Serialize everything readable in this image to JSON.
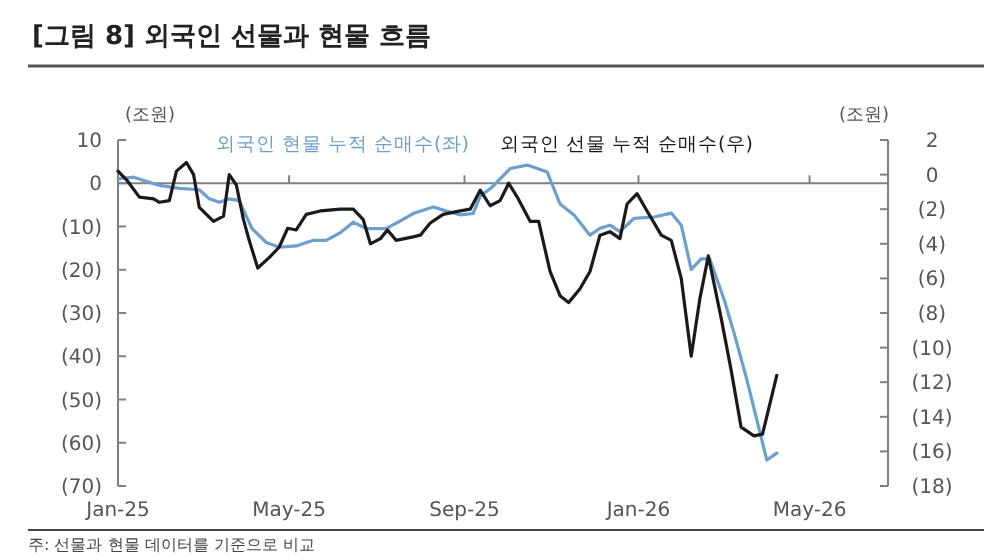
{
  "chart_data": {
    "type": "line",
    "title": "[그림 8] 외국인 선물과 현물 흐름",
    "ylabel": "(조원)",
    "y2label": "(조원)",
    "annotations": [
      "주: 선물과 현물 데이터를 기준으로 비교"
    ],
    "xlim": [
      "2025-01-01",
      "2026-06-25"
    ],
    "xticks": [
      {
        "value": "2025-01-01",
        "label": "Jan-25"
      },
      {
        "value": "2025-05-01",
        "label": "May-25"
      },
      {
        "value": "2025-09-01",
        "label": "Sep-25"
      },
      {
        "value": "2026-01-01",
        "label": "Jan-26"
      },
      {
        "value": "2026-05-01",
        "label": "May-26"
      }
    ],
    "ylim": [
      -70,
      10
    ],
    "yticks": [
      10,
      0,
      {
        "value": -10,
        "label": "(10)"
      },
      {
        "value": -20,
        "label": "(20)"
      },
      {
        "value": -30,
        "label": "(30)"
      },
      {
        "value": -40,
        "label": "(40)"
      },
      {
        "value": -50,
        "label": "(50)"
      },
      {
        "value": -60,
        "label": "(60)"
      },
      {
        "value": -70,
        "label": "(70)"
      }
    ],
    "y2lim": [
      -18,
      2
    ],
    "y2ticks": [
      2,
      0,
      {
        "value": -2,
        "label": "(2)"
      },
      {
        "value": -4,
        "label": "(4)"
      },
      {
        "value": -6,
        "label": "(6)"
      },
      {
        "value": -8,
        "label": "(8)"
      },
      {
        "value": -10,
        "label": "(10)"
      },
      {
        "value": -12,
        "label": "(12)"
      },
      {
        "value": -14,
        "label": "(14)"
      },
      {
        "value": -16,
        "label": "(16)"
      },
      {
        "value": -18,
        "label": "(18)"
      }
    ],
    "ref_lines": [
      {
        "axis": "y",
        "value": 0,
        "color": "#808080"
      }
    ],
    "legend": "top",
    "grid": false,
    "marker": "none",
    "line_style": "solid",
    "series": [
      {
        "name": "외국인 현물 누적 순매수(좌)",
        "color": "#6a9fd0",
        "axis": "y",
        "x": [
          "2025-01-01",
          "2025-01-12",
          "2025-01-30",
          "2025-02-13",
          "2025-02-27",
          "2025-03-06",
          "2025-03-13",
          "2025-03-20",
          "2025-03-27",
          "2025-04-05",
          "2025-04-15",
          "2025-04-24",
          "2025-05-06",
          "2025-05-18",
          "2025-05-27",
          "2025-06-06",
          "2025-06-15",
          "2025-06-24",
          "2025-07-08",
          "2025-07-18",
          "2025-07-27",
          "2025-08-10",
          "2025-08-20",
          "2025-08-29",
          "2025-09-07",
          "2025-09-12",
          "2025-09-20",
          "2025-10-03",
          "2025-10-15",
          "2025-10-29",
          "2025-11-07",
          "2025-11-17",
          "2025-11-28",
          "2025-12-05",
          "2025-12-12",
          "2025-12-19",
          "2025-12-29",
          "2026-01-12",
          "2026-01-24",
          "2026-01-31",
          "2026-02-07",
          "2026-02-14",
          "2026-02-20",
          "2026-03-02",
          "2026-03-09",
          "2026-03-18",
          "2026-03-25",
          "2026-04-01",
          "2026-04-08"
        ],
        "values": [
          1.0,
          1.4,
          -0.5,
          -1.2,
          -1.5,
          -3.6,
          -4.4,
          -3.6,
          -4.0,
          -10.5,
          -13.7,
          -14.8,
          -14.5,
          -13.2,
          -13.2,
          -11.4,
          -9.0,
          -10.5,
          -10.5,
          -8.7,
          -7.0,
          -5.5,
          -6.5,
          -7.3,
          -7.0,
          -3.0,
          -1.0,
          3.4,
          4.2,
          2.6,
          -4.8,
          -7.4,
          -12.0,
          -10.4,
          -9.7,
          -11.2,
          -8.1,
          -7.8,
          -6.9,
          -9.7,
          -19.9,
          -17.5,
          -17.5,
          -26.8,
          -34.6,
          -45.4,
          -54.7,
          -64.0,
          -62.4
        ]
      },
      {
        "name": "외국인 선물 누적 순매수(우)",
        "color": "#1a1a1a",
        "axis": "y2",
        "x": [
          "2025-01-01",
          "2025-01-07",
          "2025-01-16",
          "2025-01-26",
          "2025-01-30",
          "2025-02-06",
          "2025-02-11",
          "2025-02-18",
          "2025-02-23",
          "2025-02-27",
          "2025-03-09",
          "2025-03-16",
          "2025-03-20",
          "2025-03-25",
          "2025-03-30",
          "2025-04-03",
          "2025-04-09",
          "2025-04-17",
          "2025-04-24",
          "2025-04-30",
          "2025-05-06",
          "2025-05-13",
          "2025-05-23",
          "2025-06-06",
          "2025-06-15",
          "2025-06-22",
          "2025-06-27",
          "2025-07-04",
          "2025-07-09",
          "2025-07-15",
          "2025-07-27",
          "2025-08-01",
          "2025-08-08",
          "2025-08-17",
          "2025-08-29",
          "2025-09-05",
          "2025-09-12",
          "2025-09-19",
          "2025-09-26",
          "2025-10-02",
          "2025-10-08",
          "2025-10-17",
          "2025-10-23",
          "2025-10-31",
          "2025-11-07",
          "2025-11-13",
          "2025-11-21",
          "2025-11-28",
          "2025-12-05",
          "2025-12-12",
          "2025-12-19",
          "2025-12-24",
          "2025-12-31",
          "2026-01-07",
          "2026-01-17",
          "2026-01-24",
          "2026-01-31",
          "2026-02-07",
          "2026-02-13",
          "2026-02-19",
          "2026-02-28",
          "2026-03-07",
          "2026-03-14",
          "2026-03-23",
          "2026-03-29",
          "2026-04-08"
        ],
        "values": [
          0.2,
          -0.3,
          -1.3,
          -1.4,
          -1.6,
          -1.5,
          0.2,
          0.7,
          0.0,
          -1.9,
          -2.7,
          -2.4,
          0.0,
          -0.6,
          -2.6,
          -3.8,
          -5.4,
          -4.8,
          -4.2,
          -3.1,
          -3.2,
          -2.3,
          -2.1,
          -2.0,
          -2.0,
          -2.6,
          -4.0,
          -3.7,
          -3.2,
          -3.8,
          -3.6,
          -3.5,
          -2.8,
          -2.3,
          -2.1,
          -2.0,
          -0.9,
          -1.8,
          -1.5,
          -0.5,
          -1.3,
          -2.7,
          -2.7,
          -5.6,
          -7.0,
          -7.4,
          -6.6,
          -5.6,
          -3.5,
          -3.3,
          -3.7,
          -1.7,
          -1.1,
          -2.1,
          -3.5,
          -3.8,
          -6.0,
          -10.5,
          -7.2,
          -4.7,
          -8.3,
          -11.3,
          -14.6,
          -15.1,
          -15.0,
          -11.6
        ]
      }
    ]
  }
}
